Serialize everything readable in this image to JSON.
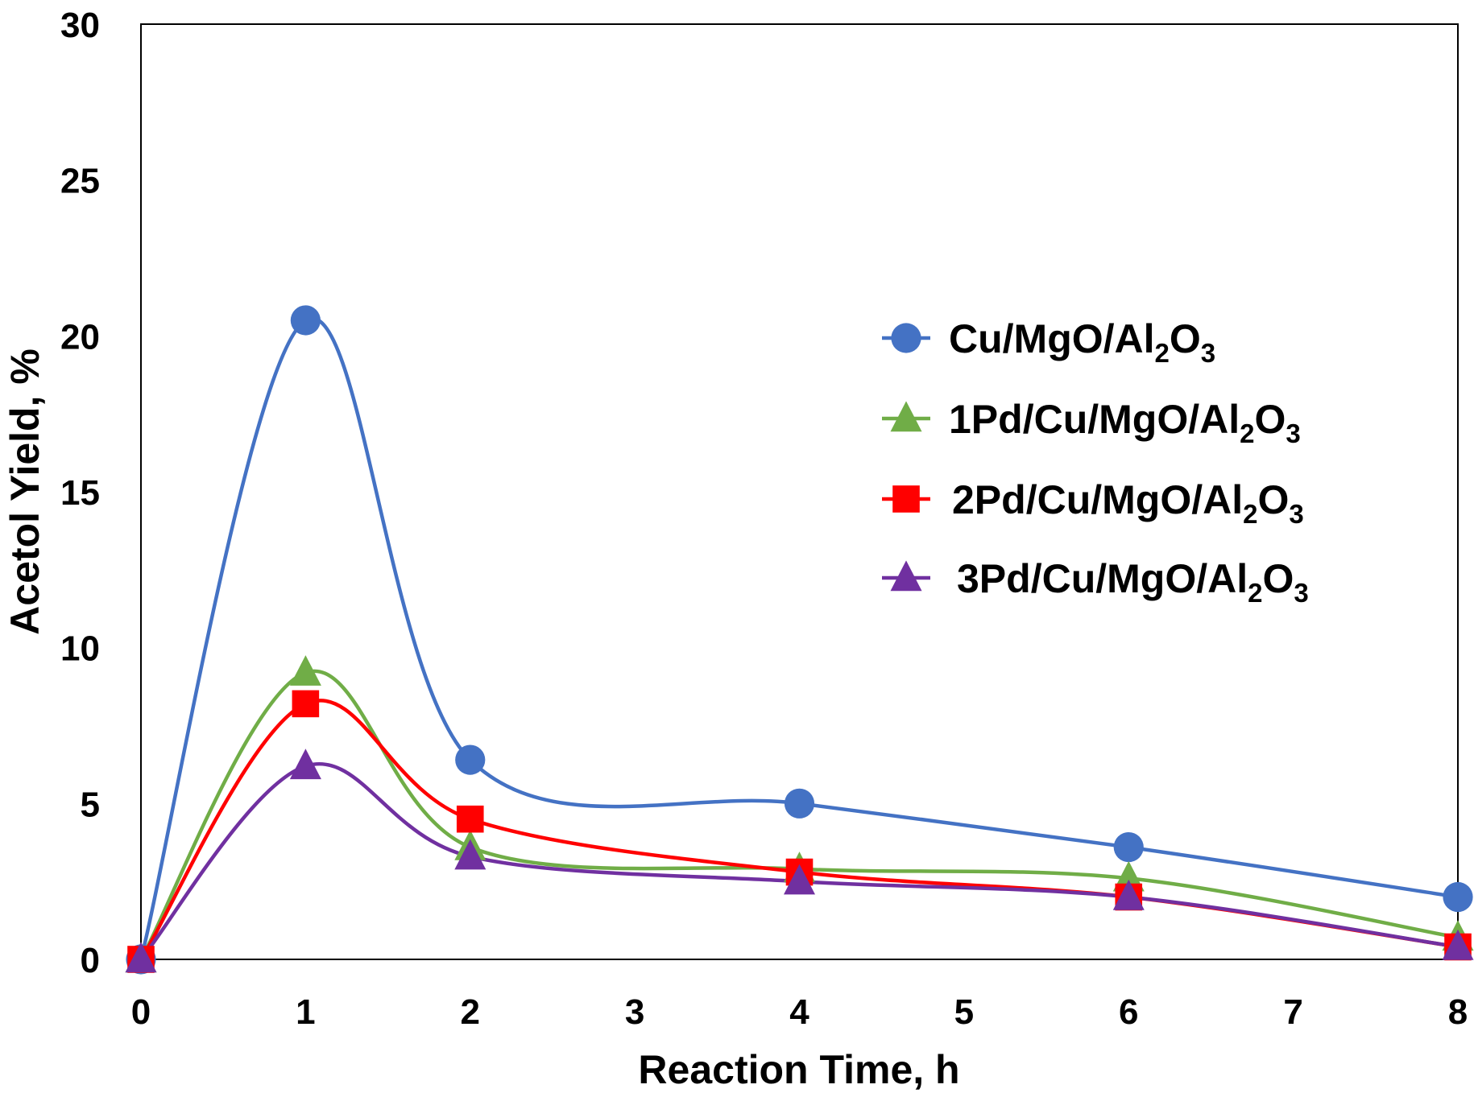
{
  "chart_data": {
    "type": "line",
    "title": "",
    "xlabel": "Reaction Time, h",
    "ylabel": "Acetol Yield, %",
    "xlim": [
      0,
      8
    ],
    "ylim": [
      0,
      30
    ],
    "xticks": [
      0,
      1,
      2,
      3,
      4,
      5,
      6,
      7,
      8
    ],
    "yticks": [
      0,
      5,
      10,
      15,
      20,
      25,
      30
    ],
    "grid": false,
    "legend_position": "right",
    "smooth": true,
    "series": [
      {
        "name": "Cu/MgO/Al2O3",
        "legend_parts": [
          {
            "text": "Cu/MgO/Al",
            "sub": false
          },
          {
            "text": "2",
            "sub": true
          },
          {
            "text": "O",
            "sub": false
          },
          {
            "text": "3",
            "sub": true
          }
        ],
        "color": "#4472C4",
        "marker": "circle",
        "x": [
          0,
          1,
          2,
          4,
          6,
          8
        ],
        "y": [
          0.0,
          20.5,
          6.4,
          5.0,
          3.6,
          2.0
        ]
      },
      {
        "name": "1Pd/Cu/MgO/Al2O3",
        "legend_parts": [
          {
            "text": "1Pd/Cu/MgO/Al",
            "sub": false
          },
          {
            "text": "2",
            "sub": true
          },
          {
            "text": "O",
            "sub": false
          },
          {
            "text": "3",
            "sub": true
          }
        ],
        "color": "#70AD47",
        "marker": "triangle",
        "x": [
          0,
          1,
          2,
          4,
          6,
          8
        ],
        "y": [
          0.0,
          9.2,
          3.6,
          2.9,
          2.6,
          0.7
        ]
      },
      {
        "name": "2Pd/Cu/MgO/Al2O3",
        "legend_parts": [
          {
            "text": "2Pd/Cu/MgO/Al",
            "sub": false
          },
          {
            "text": "2",
            "sub": true
          },
          {
            "text": "O",
            "sub": false
          },
          {
            "text": "3",
            "sub": true
          }
        ],
        "color": "#FF0000",
        "marker": "square",
        "x": [
          0,
          1,
          2,
          4,
          6,
          8
        ],
        "y": [
          0.0,
          8.2,
          4.5,
          2.8,
          2.0,
          0.4
        ]
      },
      {
        "name": "3Pd/Cu/MgO/Al2O3",
        "legend_parts": [
          {
            "text": "3Pd/Cu/MgO/Al",
            "sub": false
          },
          {
            "text": "2",
            "sub": true
          },
          {
            "text": "O",
            "sub": false
          },
          {
            "text": "3",
            "sub": true
          }
        ],
        "color": "#7030A0",
        "marker": "triangle",
        "x": [
          0,
          1,
          2,
          4,
          6,
          8
        ],
        "y": [
          0.0,
          6.2,
          3.3,
          2.5,
          2.0,
          0.4
        ]
      }
    ]
  }
}
